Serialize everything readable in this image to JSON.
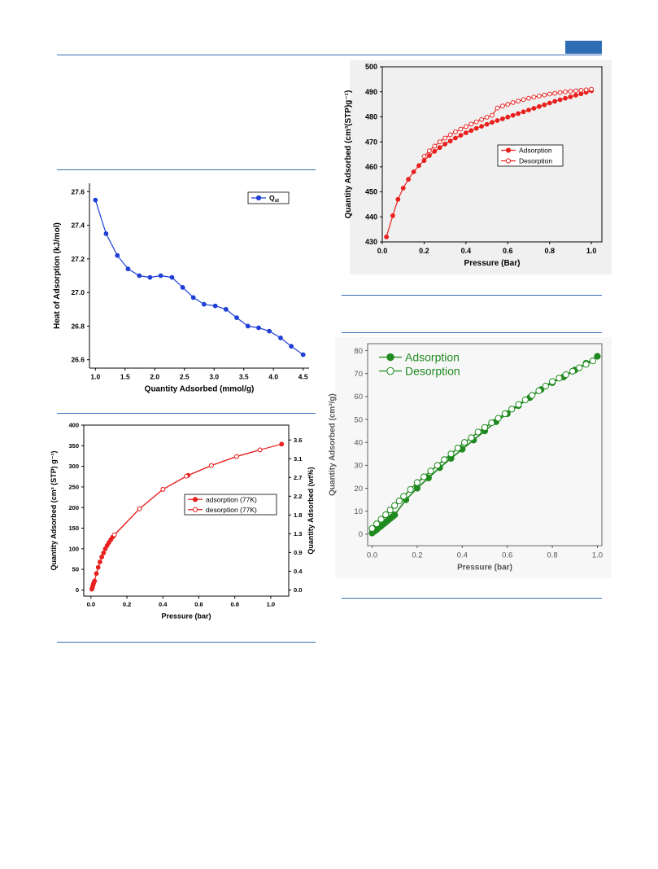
{
  "page": {
    "colors": {
      "rule": "#3a6fb5",
      "tab": "#2e6db4"
    }
  },
  "chart_data": [
    {
      "type": "line",
      "xlabel": "Quantity Adsorbed (mmol/g)",
      "ylabel": "Heat of Adsorption (kJ/mol)",
      "xlim": [
        0.9,
        4.6
      ],
      "ylim": [
        26.55,
        27.65
      ],
      "xticks": [
        1.0,
        1.5,
        2.0,
        2.5,
        3.0,
        3.5,
        4.0,
        4.5
      ],
      "xtick_labels": [
        "1.0",
        "1.5",
        "2.0",
        "2.5",
        "3.0",
        "3.5",
        "4.0",
        "4.5"
      ],
      "yticks": [
        26.6,
        26.8,
        27.0,
        27.2,
        27.4,
        27.6
      ],
      "ytick_labels": [
        "26.6",
        "26.8",
        "27.0",
        "27.2",
        "27.4",
        "27.6"
      ],
      "legend_position": "top-right",
      "series": [
        {
          "name": "Q",
          "name_sub": "st",
          "color": "#1f3fd6",
          "marker": "filled",
          "x": [
            1.0,
            1.18,
            1.37,
            1.55,
            1.74,
            1.92,
            2.1,
            2.29,
            2.47,
            2.65,
            2.83,
            3.02,
            3.2,
            3.38,
            3.57,
            3.75,
            3.93,
            4.12,
            4.3,
            4.5
          ],
          "y": [
            27.55,
            27.35,
            27.22,
            27.14,
            27.1,
            27.09,
            27.1,
            27.09,
            27.03,
            26.97,
            26.93,
            26.92,
            26.9,
            26.85,
            26.8,
            26.79,
            26.77,
            26.73,
            26.68,
            26.63
          ]
        }
      ]
    },
    {
      "type": "line",
      "xlabel": "Pressure (Bar)",
      "ylabel": "Quantity Adsorbed (cm³(STP)g⁻¹)",
      "xlim": [
        0.0,
        1.05
      ],
      "ylim": [
        430,
        500
      ],
      "xticks": [
        0.0,
        0.2,
        0.4,
        0.6,
        0.8,
        1.0
      ],
      "xtick_labels": [
        "0.0",
        "0.2",
        "0.4",
        "0.6",
        "0.8",
        "1.0"
      ],
      "yticks": [
        430,
        440,
        450,
        460,
        470,
        480,
        490,
        500
      ],
      "ytick_labels": [
        "430",
        "440",
        "450",
        "460",
        "470",
        "480",
        "490",
        "500"
      ],
      "legend_position": "center-right",
      "series": [
        {
          "name": "Adsorption",
          "color": "#e8201e",
          "marker": "filled",
          "x": [
            0.02,
            0.05,
            0.075,
            0.1,
            0.125,
            0.15,
            0.175,
            0.2,
            0.225,
            0.25,
            0.275,
            0.3,
            0.325,
            0.35,
            0.375,
            0.4,
            0.425,
            0.45,
            0.475,
            0.5,
            0.525,
            0.55,
            0.575,
            0.6,
            0.625,
            0.65,
            0.675,
            0.7,
            0.725,
            0.75,
            0.775,
            0.8,
            0.825,
            0.85,
            0.875,
            0.9,
            0.925,
            0.95,
            0.975,
            1.0
          ],
          "y": [
            432,
            440.5,
            447,
            451.5,
            455,
            458,
            460.5,
            462.5,
            464.5,
            466.2,
            467.7,
            469.1,
            470.3,
            471.5,
            472.6,
            473.6,
            474.5,
            475.4,
            476.2,
            477,
            477.8,
            478.5,
            479.2,
            479.9,
            480.6,
            481.3,
            482,
            482.7,
            483.4,
            484.1,
            484.8,
            485.5,
            486.2,
            486.8,
            487.4,
            488,
            488.6,
            489.2,
            489.8,
            490.4
          ]
        },
        {
          "name": "Desorption",
          "color": "#e8201e",
          "marker": "open",
          "x": [
            0.2,
            0.225,
            0.25,
            0.275,
            0.3,
            0.325,
            0.35,
            0.375,
            0.4,
            0.425,
            0.45,
            0.475,
            0.5,
            0.525,
            0.55,
            0.575,
            0.6,
            0.625,
            0.65,
            0.675,
            0.7,
            0.725,
            0.75,
            0.775,
            0.8,
            0.825,
            0.85,
            0.875,
            0.9,
            0.925,
            0.95,
            0.975,
            1.0
          ],
          "y": [
            464.2,
            466.4,
            468.3,
            470,
            471.5,
            472.8,
            474,
            475.1,
            476.1,
            477.1,
            478,
            478.9,
            479.8,
            480.6,
            483.5,
            484.3,
            485,
            485.7,
            486.3,
            486.9,
            487.4,
            487.9,
            488.3,
            488.7,
            489.1,
            489.4,
            489.7,
            490,
            490.2,
            490.4,
            490.6,
            490.8,
            491
          ]
        }
      ]
    },
    {
      "type": "line",
      "xlabel": "Pressure (bar)",
      "ylabel": "Quantity Adsorbed (cm³ (STP) g⁻¹)",
      "ylabel_right": "Quantity Adsorbed (wt%)",
      "xlim": [
        -0.04,
        1.1
      ],
      "ylim": [
        -15,
        400
      ],
      "xticks": [
        0.0,
        0.2,
        0.4,
        0.6,
        0.8,
        1.0
      ],
      "xtick_labels": [
        "0.0",
        "0.2",
        "0.4",
        "0.6",
        "0.8",
        "1.0"
      ],
      "yticks": [
        0,
        50,
        100,
        150,
        200,
        250,
        300,
        350,
        400
      ],
      "ytick_labels": [
        "0",
        "50",
        "100",
        "150",
        "200",
        "250",
        "300",
        "350",
        "400"
      ],
      "yticks_right_labels": [
        "0.0",
        "0.4",
        "0.9",
        "1.3",
        "1.8",
        "2.2",
        "2.7",
        "3.1",
        "3.6"
      ],
      "yticks_right_values": [
        0,
        45.5,
        91,
        136.5,
        182,
        227.5,
        273,
        318.5,
        364
      ],
      "legend_position": "center-right",
      "series": [
        {
          "name": "adsorption (77K)",
          "color": "#e8201e",
          "marker": "filled",
          "x": [
            0.005,
            0.008,
            0.01,
            0.013,
            0.016,
            0.02,
            0.03,
            0.04,
            0.05,
            0.06,
            0.07,
            0.08,
            0.09,
            0.1,
            0.11,
            0.12,
            0.13,
            0.27,
            0.4,
            0.54,
            0.67,
            0.81,
            0.94,
            1.06
          ],
          "y": [
            2,
            6,
            10,
            14,
            18,
            22,
            40,
            55,
            68,
            80,
            90,
            100,
            108,
            115,
            122,
            128,
            133,
            197,
            244,
            278,
            302,
            324,
            340,
            354
          ]
        },
        {
          "name": "desorption (77K)",
          "color": "#e8201e",
          "marker": "open",
          "x": [
            0.13,
            0.27,
            0.4,
            0.53,
            0.67,
            0.81,
            0.94
          ],
          "y": [
            134,
            197,
            244,
            276,
            302,
            324,
            340
          ]
        }
      ]
    },
    {
      "type": "line",
      "xlabel": "Pressure  (bar)",
      "ylabel": "Quantity Adsorbed  (cm³/g)",
      "xlim": [
        -0.02,
        1.02
      ],
      "ylim": [
        -5,
        83
      ],
      "xticks": [
        0.0,
        0.2,
        0.4,
        0.6,
        0.8,
        1.0
      ],
      "xtick_labels": [
        "0.0",
        "0.2",
        "0.4",
        "0.6",
        "0.8",
        "1.0"
      ],
      "yticks": [
        0,
        10,
        20,
        30,
        40,
        50,
        60,
        70,
        80
      ],
      "ytick_labels": [
        "0",
        "10",
        "20",
        "30",
        "40",
        "50",
        "60",
        "70",
        "80"
      ],
      "legend_position": "top-left",
      "series": [
        {
          "name": "Adsorption",
          "color": "#1f8a1f",
          "marker": "filled",
          "x": [
            0.0,
            0.01,
            0.02,
            0.03,
            0.04,
            0.05,
            0.06,
            0.07,
            0.08,
            0.09,
            0.1,
            0.15,
            0.2,
            0.25,
            0.3,
            0.35,
            0.4,
            0.45,
            0.5,
            0.55,
            0.6,
            0.65,
            0.7,
            0.75,
            0.8,
            0.85,
            0.9,
            0.95,
            1.0
          ],
          "y": [
            0.5,
            1.2,
            2.0,
            2.8,
            3.6,
            4.4,
            5.2,
            6.0,
            6.8,
            7.6,
            8.4,
            15,
            20,
            24.5,
            29,
            33,
            37,
            41,
            45,
            49,
            52.5,
            56,
            59.5,
            63,
            66,
            68.5,
            71.5,
            74.5,
            77.5
          ]
        },
        {
          "name": "Desorption",
          "color": "#1f8a1f",
          "marker": "open",
          "x": [
            0.0,
            0.02,
            0.04,
            0.06,
            0.08,
            0.1,
            0.12,
            0.14,
            0.17,
            0.2,
            0.23,
            0.26,
            0.29,
            0.32,
            0.35,
            0.38,
            0.41,
            0.44,
            0.47,
            0.5,
            0.53,
            0.56,
            0.59,
            0.62,
            0.65,
            0.68,
            0.71,
            0.74,
            0.77,
            0.8,
            0.83,
            0.86,
            0.89,
            0.92,
            0.95,
            0.98
          ],
          "y": [
            2.5,
            4.5,
            6.5,
            8.5,
            10.5,
            12.5,
            14.5,
            16.5,
            19.5,
            22.5,
            25,
            27.5,
            30,
            32.5,
            35,
            37.5,
            40,
            42,
            44.5,
            46.5,
            48.5,
            50.5,
            52.5,
            54.5,
            56.5,
            58.5,
            60.5,
            62.5,
            64.5,
            66.5,
            68,
            69.5,
            71,
            72.5,
            74,
            75.5
          ]
        }
      ]
    }
  ]
}
